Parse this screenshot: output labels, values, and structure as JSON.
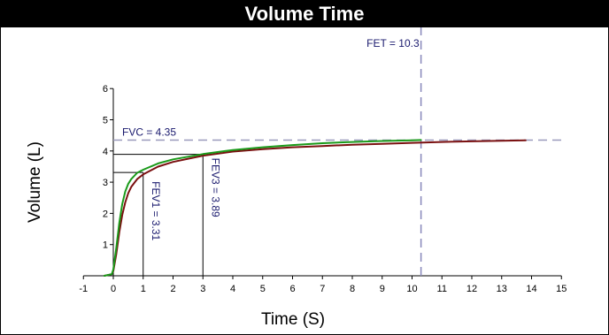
{
  "colors": {
    "title_bg": "#000000",
    "title_fg": "#ffffff",
    "ref_dashed": "#9999bb",
    "fet_dashed": "#8888bb",
    "annotation": "#1a1a6e",
    "series_green": "#1a9a1a",
    "series_darkred": "#7a1010",
    "ref_solid": "#000000"
  },
  "chart_data": {
    "type": "line",
    "title": "Volume Time",
    "xlabel": "Time (S)",
    "ylabel": "Volume (L)",
    "xlim": [
      -1,
      15
    ],
    "ylim": [
      0,
      6
    ],
    "x_ticks": [
      -1,
      0,
      1,
      2,
      3,
      4,
      5,
      6,
      7,
      8,
      9,
      10,
      11,
      12,
      13,
      14,
      15
    ],
    "y_ticks": [
      1,
      2,
      3,
      4,
      5,
      6
    ],
    "series": [
      {
        "color": "series_darkred",
        "x": [
          -0.3,
          -0.05,
          0.0,
          0.1,
          0.2,
          0.3,
          0.4,
          0.5,
          0.6,
          0.8,
          1.0,
          1.5,
          2.0,
          3.0,
          4.0,
          5.0,
          6.0,
          7.0,
          8.0,
          9.0,
          10.0,
          11.0,
          12.0,
          13.0,
          13.8
        ],
        "y": [
          0.0,
          0.05,
          0.15,
          0.7,
          1.4,
          1.95,
          2.35,
          2.65,
          2.85,
          3.1,
          3.25,
          3.5,
          3.65,
          3.85,
          3.98,
          4.06,
          4.12,
          4.16,
          4.2,
          4.23,
          4.26,
          4.29,
          4.31,
          4.33,
          4.34
        ]
      },
      {
        "color": "series_green",
        "x": [
          -0.3,
          -0.05,
          0.0,
          0.1,
          0.2,
          0.3,
          0.4,
          0.5,
          0.6,
          0.8,
          1.0,
          1.5,
          2.0,
          3.0,
          4.0,
          5.0,
          6.0,
          7.0,
          8.0,
          9.0,
          10.0,
          10.3
        ],
        "y": [
          0.0,
          0.05,
          0.2,
          0.9,
          1.7,
          2.3,
          2.7,
          2.95,
          3.1,
          3.3,
          3.4,
          3.6,
          3.73,
          3.9,
          4.03,
          4.12,
          4.19,
          4.25,
          4.29,
          4.32,
          4.34,
          4.35
        ]
      }
    ],
    "reference_lines": {
      "fvc": {
        "label": "FVC = 4.35",
        "value": 4.35
      },
      "fet": {
        "label": "FET = 10.3",
        "value": 10.3
      },
      "fev1": {
        "label": "FEV1 = 3.31",
        "x": 1,
        "y": 3.31
      },
      "fev3": {
        "label": "FEV3 = 3.89",
        "x": 3,
        "y": 3.89
      }
    },
    "grid": false,
    "legend": "none"
  }
}
